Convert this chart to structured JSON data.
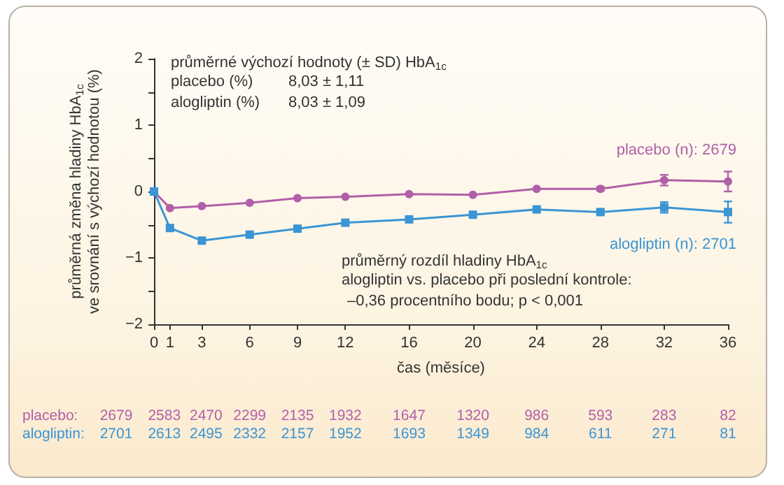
{
  "chart_data": {
    "type": "line",
    "xlabel": "čas (měsíce)",
    "ylabel": "průměrná změna hladiny HbA$_{1c}$\nve srovnání s výchozí hodnotou (%)",
    "x": [
      0,
      1,
      3,
      6,
      9,
      12,
      16,
      20,
      24,
      28,
      32,
      36
    ],
    "series": [
      {
        "name": "placebo (n): 2679",
        "color": "#b05fa8",
        "marker": "circle",
        "values": [
          0,
          -0.25,
          -0.22,
          -0.17,
          -0.1,
          -0.08,
          -0.04,
          -0.05,
          0.04,
          0.04,
          0.17,
          0.15
        ],
        "errors": [
          null,
          null,
          null,
          null,
          null,
          null,
          null,
          null,
          null,
          0.03,
          0.08,
          0.15
        ]
      },
      {
        "name": "alogliptin (n): 2701",
        "color": "#3a95d5",
        "marker": "square",
        "values": [
          0,
          -0.55,
          -0.74,
          -0.65,
          -0.56,
          -0.47,
          -0.42,
          -0.35,
          -0.27,
          -0.31,
          -0.24,
          -0.31
        ],
        "errors": [
          null,
          null,
          null,
          null,
          null,
          null,
          null,
          null,
          null,
          0.03,
          0.08,
          0.16
        ]
      }
    ],
    "xlim": [
      0,
      36
    ],
    "xticks": [
      0,
      1,
      3,
      6,
      9,
      12,
      16,
      20,
      24,
      28,
      32,
      36
    ],
    "ylim": [
      -2,
      2
    ],
    "yticks": [
      -2,
      {
        "value": -1.5,
        "label": null
      },
      -1,
      {
        "value": -0.5,
        "label": null
      },
      0,
      {
        "value": 0.5,
        "label": null
      },
      1,
      {
        "value": 1.5,
        "label": null
      },
      2
    ],
    "grid": false,
    "legend": false,
    "annotations": [
      "průměrné výchozí hodnoty (± SD) HbA$_{1c}$",
      "placebo (%)",
      "8,03 ± 1,11",
      "alogliptin (%)",
      "8,03 ± 1,09",
      "průměrný rozdíl hladiny HbA$_{1c}$",
      "alogliptin vs. placebo při poslední kontrole:",
      "–0,36 procentního bodu; p < 0,001",
      "placebo: 2679 2583 2470 2299 2135 1932 1647 1320 986 593 283 82",
      "alogliptin: 2701 2613 2495 2332 2157 1952 1693 1349 984 611 271 81"
    ]
  }
}
